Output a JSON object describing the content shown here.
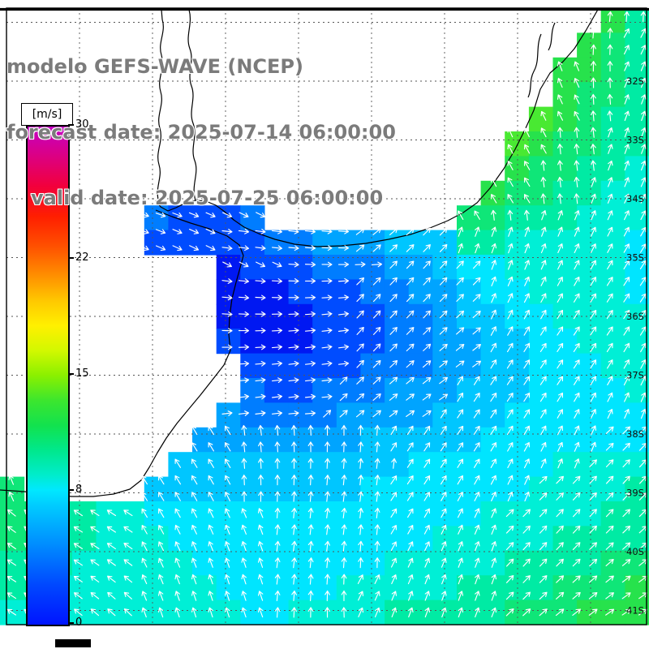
{
  "header": {
    "title": "modelo GEFS-WAVE (NCEP)",
    "forecast_line": "forecast date: 2025-07-14 06:00:00",
    "valid_line": "valid date: 2025-07-25 06:00:00"
  },
  "colorbar": {
    "unit_label": "[m/s]",
    "min": 0,
    "max": 30,
    "tick_values": [
      30,
      22,
      15,
      8,
      0
    ],
    "tick_labels": [
      "30",
      "22",
      "15",
      "8",
      "0"
    ],
    "gradient_stops": [
      [
        0.0,
        "#0014ff"
      ],
      [
        0.08,
        "#0048ff"
      ],
      [
        0.16,
        "#008cff"
      ],
      [
        0.24,
        "#00ccff"
      ],
      [
        0.27,
        "#00e8ff"
      ],
      [
        0.3,
        "#00eccc"
      ],
      [
        0.35,
        "#00e88c"
      ],
      [
        0.4,
        "#12e24e"
      ],
      [
        0.45,
        "#3ce62e"
      ],
      [
        0.5,
        "#8af000"
      ],
      [
        0.55,
        "#d2f800"
      ],
      [
        0.6,
        "#fff000"
      ],
      [
        0.65,
        "#ffc800"
      ],
      [
        0.7,
        "#ff9000"
      ],
      [
        0.76,
        "#ff5000"
      ],
      [
        0.82,
        "#ff1e00"
      ],
      [
        0.88,
        "#f2003c"
      ],
      [
        0.94,
        "#dc0082"
      ],
      [
        1.0,
        "#c400c4"
      ]
    ]
  },
  "map": {
    "land_color": "#ffffff",
    "arrow_color": "#ffffff",
    "grid_color": "#555555",
    "frame_color": "#000000",
    "lat_labels": [
      "",
      "32S",
      "33S",
      "34S",
      "35S",
      "36S",
      "37S",
      "38S",
      "39S",
      "40S",
      "41S"
    ],
    "lat_label_y_start": 27.5,
    "lat_label_y_step": 72.5,
    "vgrid_x_start": 8,
    "vgrid_x_step": 90,
    "vgrid_count": 9,
    "sea_palette": {
      "1": "#0018f2",
      "2": "#004cff",
      "3": "#007dff",
      "4": "#00a4ff",
      "5": "#00c6ff",
      "6": "#00e5ff",
      "7": "#00efd6",
      "8": "#00eba4",
      "9": "#0fe678",
      "g": "#27e24c",
      "G": "#49e932"
    },
    "dir_angles": {
      "E": 0,
      "D": 20,
      "A": -40,
      "F": -63,
      "N": -90,
      "G": -115,
      "B": -140
    },
    "cell_colors": [
      ".........................g8",
      "........................g98",
      ".......................gg98",
      ".......................g998",
      "......................Gg988",
      ".....................Gg9988",
      ".....................g99887",
      "....................g998877",
      "......32223........99888777",
      "......222223344455588777776",
      ".........122233344566777776",
      ".........111222334456677776",
      ".........111122233455667777",
      ".........211122233445566777",
      "..........22222333445566677",
      "..........32233344455566667",
      ".........433334444555666666",
      "........4444444555556666666",
      ".......55555555556666667777",
      "9.....555555555666666677778",
      "998877666666666666667777788",
      "998877766666666666777778888",
      "888777776666666677777888899",
      "88777777766666777778888999g",
      "777777777766777788888999ggg"
    ],
    "cell_dirs": [
      ".........................NN",
      "........................NNF",
      ".......................GNNF",
      ".......................GNNF",
      "......................GGNNF",
      ".....................GGNNFF",
      ".....................GNNNFF",
      "....................GGNNFFF",
      "......DDDDD........GNNFFFFF",
      "......DDDEEEEEEAAAAFFFFFFFF",
      ".........DDDEEEEAAAAFFFFFFF",
      ".........EEEEEEAAAAAFFFFFFF",
      ".........EEEEEEAAAAAFFFFFFF",
      ".........EEEEEEAAAAAFFFFFFF",
      "..........EEEEEAAAAAFFFFFFF",
      "..........EEEEAAAAAFFFFFFFF",
      ".........EEEEAAAAAFFFFFFFFF",
      "........GGNNNNNNFFFFFFFFFAA",
      ".......GGGNNNNNNNFFFFFFFAAA",
      "G.....GGGGNNNNNNFFFFFFAAAAA",
      "BBBBBBGGGGGNNNNNFFFFFAAAAAA",
      "BBBBBBGGGGGNNNNNFFFFFAAAAAA",
      "BBBBBBGGGGGNNNNNFFFFFAAAAAA",
      "BBBBBBGGGGGNNNNFFFFFFAAAAAA",
      "BBBBBBGGGGGNNNNFFFFFFAAAAAA"
    ],
    "coast_paths": [
      "M 738 10 L 722 38 L 708 60 L 694 76 L 678 90 L 666 110 L 658 136 L 647 160 L 635 184 L 621 208 L 604 232 L 588 250 L 571 262 L 552 272 L 530 281 L 506 289 L 479 295 L 451 300 L 421 303 L 391 304 L 363 301 L 339 295 L 319 288 L 301 280 L 288 271 L 277 261 L 266 253 L 254 248 L 241 247 L 229 250 L 217 256 L 207 260 L 198 255 L 192 247",
      "M 192 259 L 212 267 L 235 275 L 258 282 L 280 291 L 295 302 L 300 315 L 296 330 L 291 348 L 286 368 L 283 390 L 282 412 L 284 432 L 276 450 L 262 468 L 247 487 L 232 505 L 218 522 L 205 540 L 194 558 L 184 576 L 174 592 L 160 603 L 140 609 L 115 612 L 88 612 L 60 609 L 30 606 L 0 604",
      "M 196 249 C 190 232 201 219 196 203 C 191 187 202 174 197 158 C 192 142 203 129 198 113 C 193 97 204 84 199 68 C 194 52 205 40 200 24 L 199 12",
      "M 241 247 C 235 228 246 214 240 198 C 234 182 244 168 238 152 C 232 136 242 122 236 106 C 230 90 240 76 234 60 C 228 44 238 30 233 12",
      "M 667 42 C 660 58 666 74 658 88 C 652 99 656 110 651 120",
      "M 684 28 C 678 40 682 52 676 62"
    ]
  }
}
